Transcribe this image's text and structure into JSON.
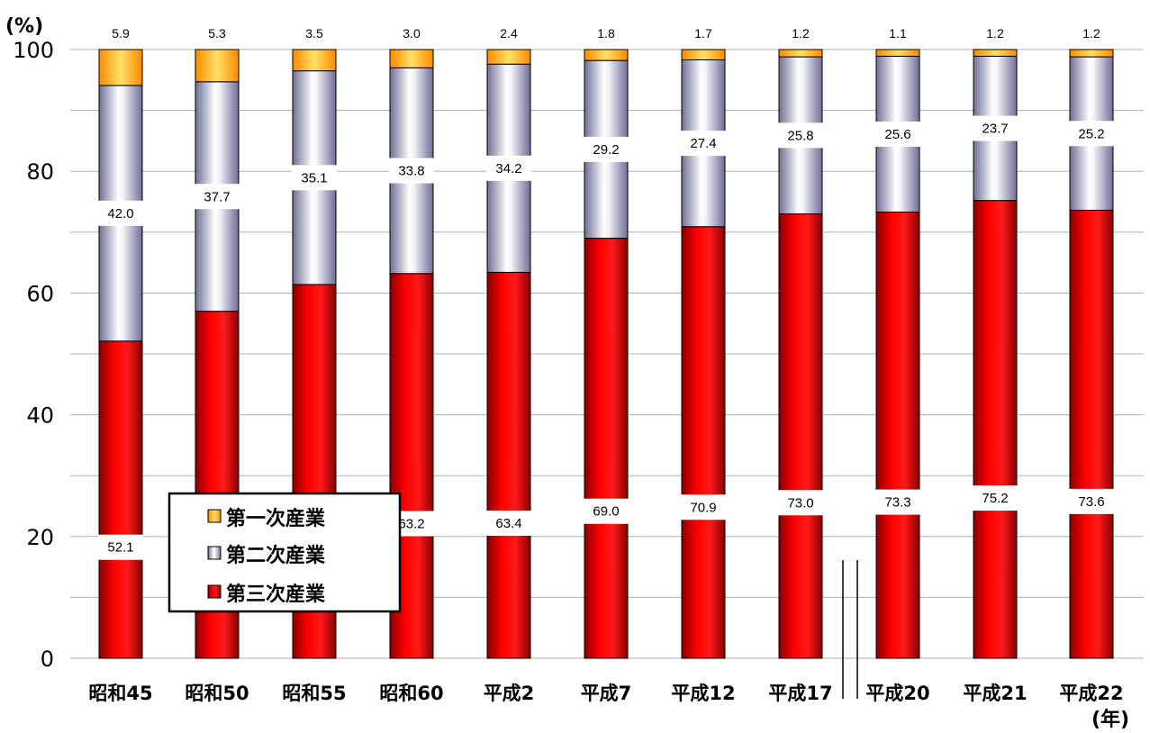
{
  "chart_data": {
    "type": "bar",
    "stacked": true,
    "ylabel": "(%)",
    "xlabel": "(年)",
    "ylim": [
      0,
      100
    ],
    "yticks": [
      "0",
      "20",
      "40",
      "60",
      "80",
      "100"
    ],
    "grid": true,
    "categories": [
      "昭和45",
      "昭和50",
      "昭和55",
      "昭和60",
      "平成2",
      "平成7",
      "平成12",
      "平成17",
      "平成20",
      "平成21",
      "平成22"
    ],
    "series": [
      {
        "name": "第三次産業",
        "color": "#ff0000",
        "values": [
          52.1,
          57.0,
          61.4,
          63.2,
          63.4,
          69.0,
          70.9,
          73.0,
          73.3,
          75.2,
          73.6
        ],
        "labels": [
          "52.1",
          "57.0",
          "61.4",
          "63.2",
          "63.4",
          "69.0",
          "70.9",
          "73.0",
          "73.3",
          "75.2",
          "73.6"
        ]
      },
      {
        "name": "第二次産業",
        "color": "#c8c8e0",
        "values": [
          42.0,
          37.7,
          35.1,
          33.8,
          34.2,
          29.2,
          27.4,
          25.8,
          25.6,
          23.7,
          25.2
        ],
        "labels": [
          "42.0",
          "37.7",
          "35.1",
          "33.8",
          "34.2",
          "29.2",
          "27.4",
          "25.8",
          "25.6",
          "23.7",
          "25.2"
        ]
      },
      {
        "name": "第一次産業",
        "color": "#ffc000",
        "values": [
          5.9,
          5.3,
          3.5,
          3.0,
          2.4,
          1.8,
          1.7,
          1.2,
          1.1,
          1.2,
          1.2
        ],
        "labels": [
          "5.9",
          "5.3",
          "3.5",
          "3.0",
          "2.4",
          "1.8",
          "1.7",
          "1.2",
          "1.1",
          "1.2",
          "1.2"
        ]
      }
    ],
    "legend": {
      "placement": "bottom-left",
      "order": [
        "第一次産業",
        "第二次産業",
        "第三次産業"
      ]
    },
    "break_between": [
      "平成17",
      "平成20"
    ]
  }
}
